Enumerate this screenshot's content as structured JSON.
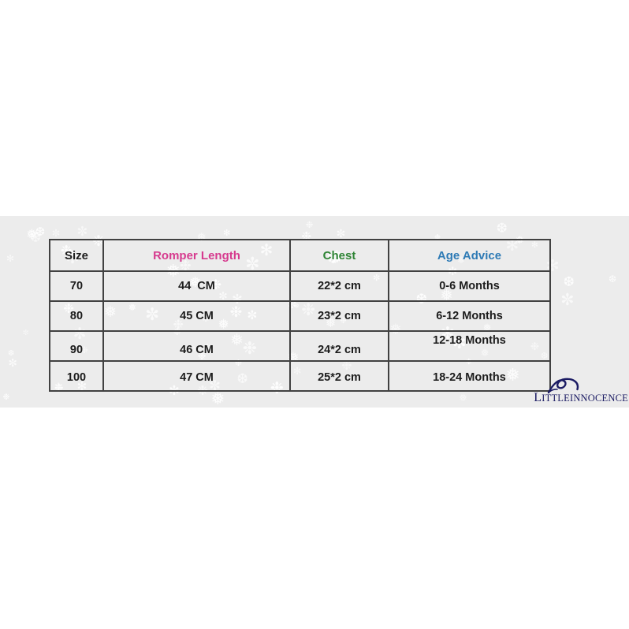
{
  "brand": {
    "watermark": "LITTLEINNOCENCE",
    "watermark_color": "#1b1b63"
  },
  "decor": {
    "band_background_color": "#ececec",
    "snowflake_color": "#ffffff",
    "snowflake_glyphs": [
      "❅",
      "❆",
      "✻",
      "✼",
      "❉"
    ]
  },
  "table": {
    "headers": [
      {
        "label": "Size",
        "color": "#1c1c1c"
      },
      {
        "label": "Romper Length",
        "color": "#d63a8e"
      },
      {
        "label": "Chest",
        "color": "#2e8434"
      },
      {
        "label": "Age Advice",
        "color": "#2d7ab5"
      }
    ],
    "rows": [
      {
        "size": "70",
        "romper_length": "44  CM",
        "chest": "22*2 cm",
        "age_advice": "0-6 Months"
      },
      {
        "size": "80",
        "romper_length": "45 CM",
        "chest": "23*2 cm",
        "age_advice": "6-12 Months"
      },
      {
        "size": "90",
        "romper_length": "46 CM",
        "chest": "24*2 cm",
        "age_advice": "12-18 Months"
      },
      {
        "size": "100",
        "romper_length": "47 CM",
        "chest": "25*2 cm",
        "age_advice": "18-24 Months"
      }
    ]
  }
}
